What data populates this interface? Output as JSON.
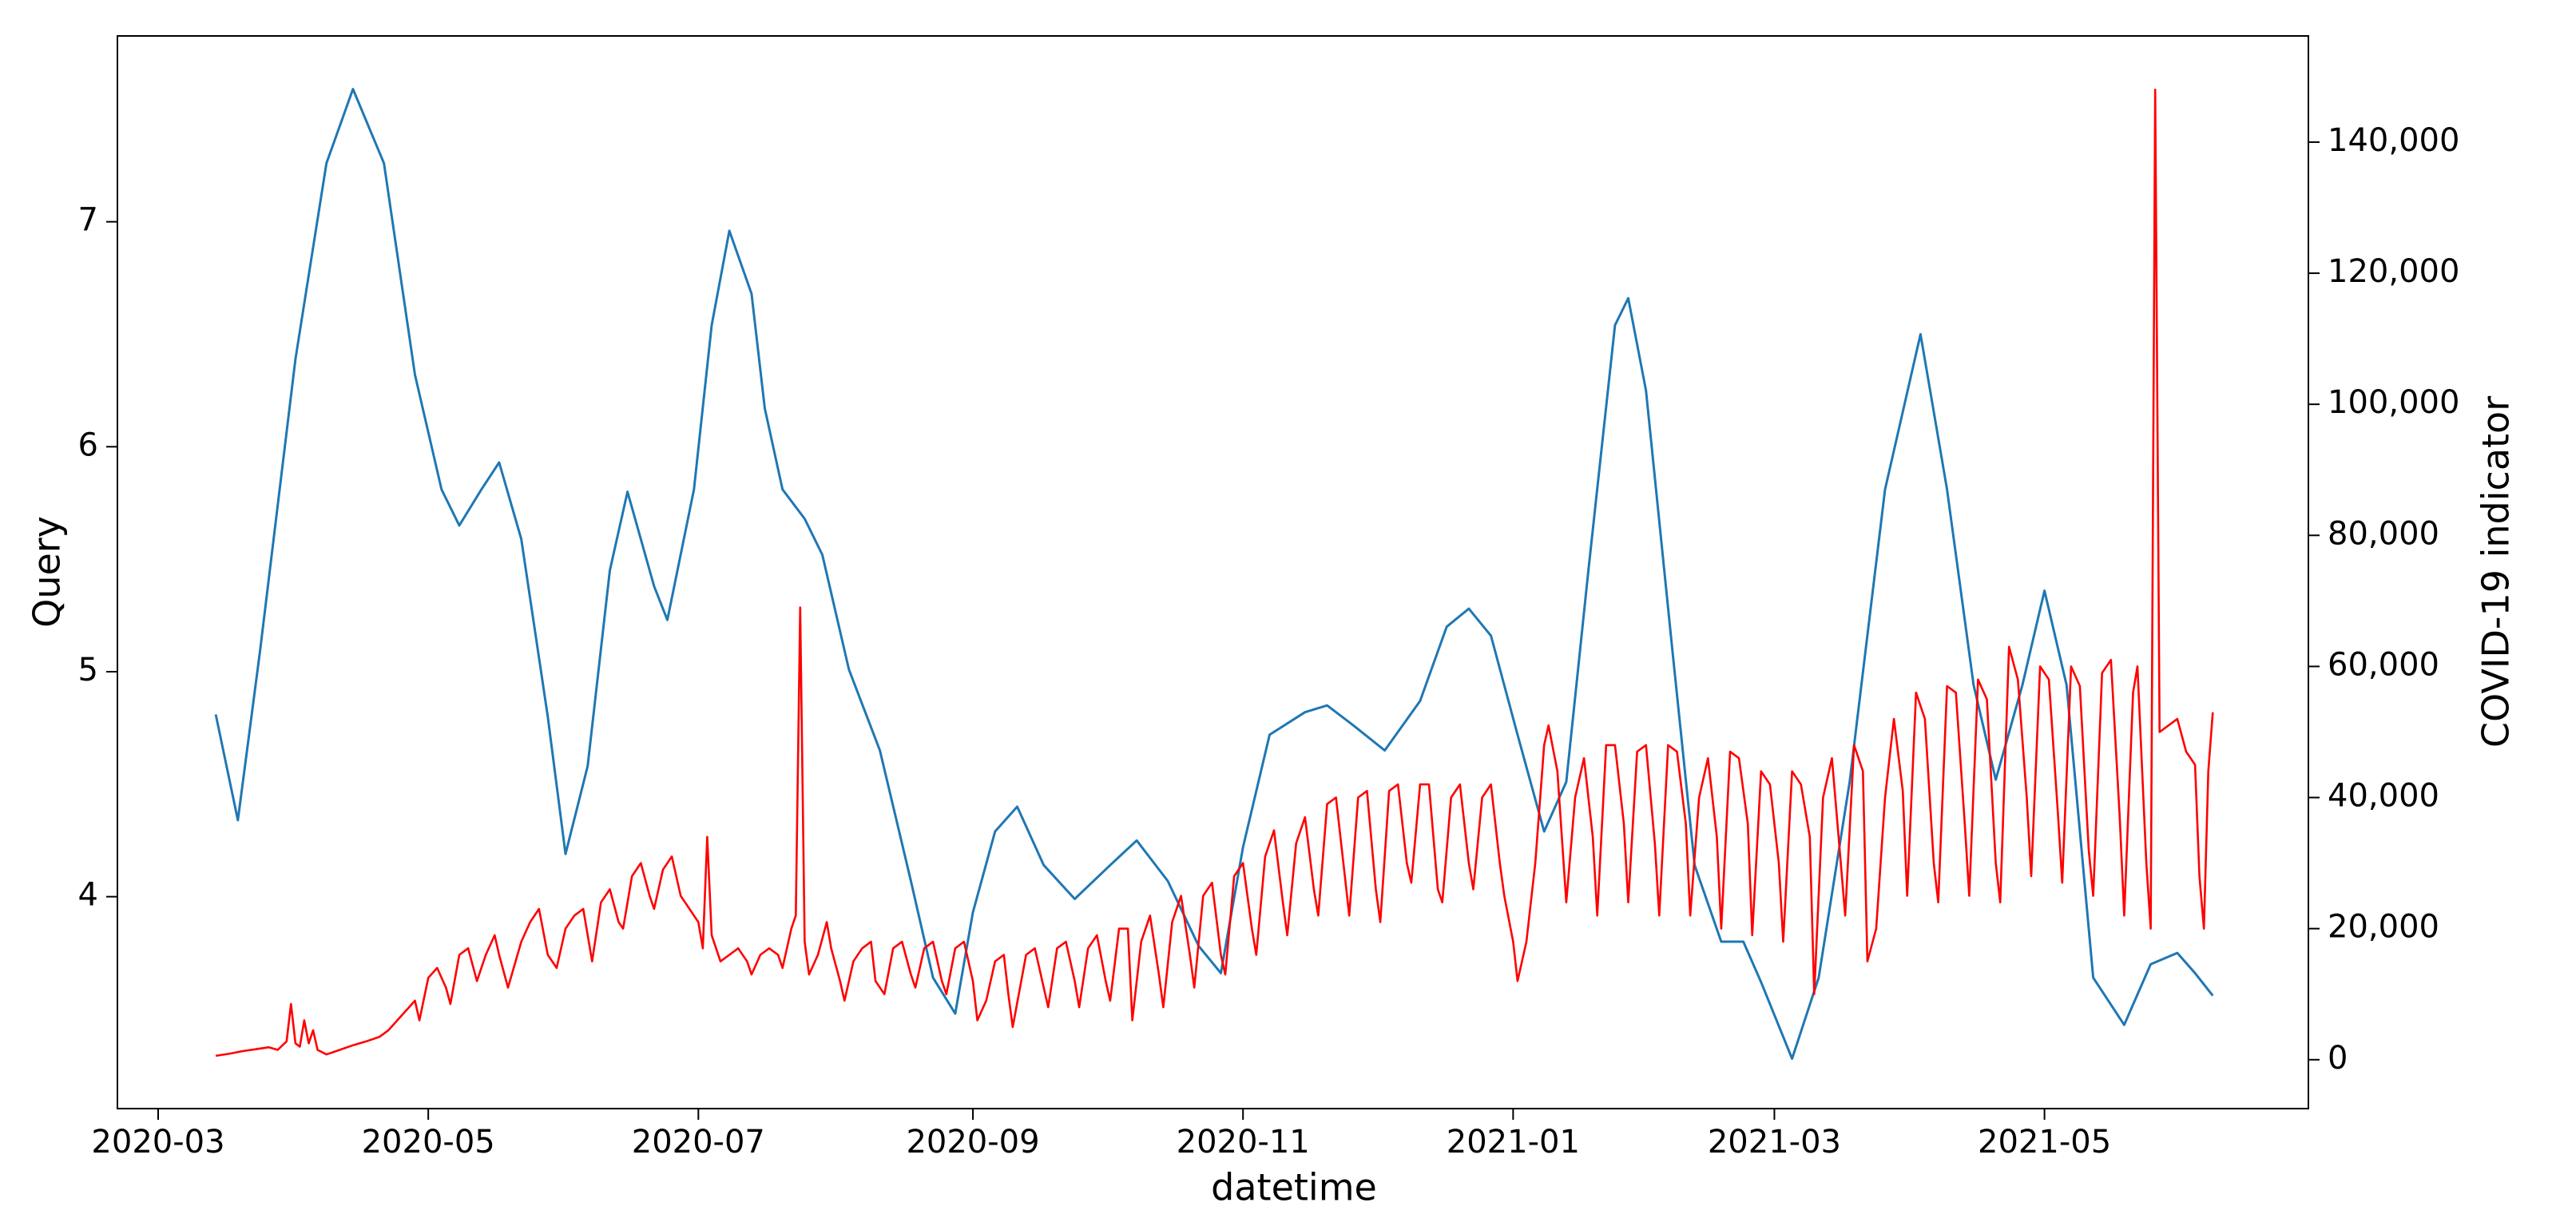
{
  "chart_data": {
    "type": "line",
    "x_label": "datetime",
    "y_label": "Query",
    "y2_label": "COVID-19 indicator",
    "xlim": [
      -9.2,
      485.6
    ],
    "xticks": [
      {
        "value": 0,
        "label": "2020-03"
      },
      {
        "value": 61,
        "label": "2020-05"
      },
      {
        "value": 122,
        "label": "2020-07"
      },
      {
        "value": 184,
        "label": "2020-09"
      },
      {
        "value": 245,
        "label": "2020-11"
      },
      {
        "value": 306,
        "label": "2021-01"
      },
      {
        "value": 365,
        "label": "2021-03"
      },
      {
        "value": 426,
        "label": "2021-05"
      }
    ],
    "ylim": [
      3.058,
      7.826
    ],
    "yticks": [
      4,
      5,
      6,
      7
    ],
    "y2lim": [
      -7460,
      156200
    ],
    "y2ticks": [
      0,
      {
        "value": 20000,
        "label": "20,000"
      },
      {
        "value": 40000,
        "label": "40,000"
      },
      {
        "value": 60000,
        "label": "60,000"
      },
      {
        "value": 80000,
        "label": "80,000"
      },
      {
        "value": 100000,
        "label": "100,000"
      },
      {
        "value": 120000,
        "label": "120,000"
      },
      {
        "value": 140000,
        "label": "140,000"
      }
    ],
    "series": [
      {
        "color": "#1f77b4",
        "axis": "y",
        "x": [
          13,
          18,
          23,
          31,
          38,
          44,
          51,
          58,
          64,
          68,
          73,
          77,
          82,
          88,
          92,
          97,
          102,
          106,
          112,
          115,
          121,
          125,
          129,
          134,
          137,
          141,
          146,
          150,
          156,
          163,
          170,
          175,
          180,
          184,
          189,
          194,
          200,
          207,
          215,
          221,
          228,
          235,
          240,
          245,
          251,
          259,
          264,
          270,
          277,
          285,
          291,
          296,
          301,
          307,
          313,
          318,
          323,
          329,
          332,
          336,
          342,
          347,
          353,
          358,
          362,
          369,
          375,
          382,
          390,
          398,
          404,
          410,
          415,
          421,
          426,
          431,
          437,
          444,
          450,
          456,
          460,
          464
        ],
        "values": [
          4.81,
          4.34,
          5.09,
          6.39,
          7.26,
          7.59,
          7.26,
          6.32,
          5.81,
          5.65,
          5.81,
          5.93,
          5.59,
          4.8,
          4.19,
          4.58,
          5.45,
          5.8,
          5.38,
          5.23,
          5.81,
          6.54,
          6.96,
          6.68,
          6.17,
          5.81,
          5.68,
          5.52,
          5.01,
          4.65,
          4.07,
          3.64,
          3.48,
          3.93,
          4.29,
          4.4,
          4.14,
          3.99,
          4.14,
          4.25,
          4.07,
          3.78,
          3.66,
          4.22,
          4.72,
          4.82,
          4.85,
          4.76,
          4.65,
          4.87,
          5.2,
          5.28,
          5.16,
          4.72,
          4.29,
          4.51,
          5.45,
          6.54,
          6.66,
          6.25,
          5.09,
          4.14,
          3.8,
          3.8,
          3.62,
          3.28,
          3.64,
          4.51,
          5.81,
          6.5,
          5.81,
          4.94,
          4.52,
          4.94,
          5.36,
          4.94,
          3.64,
          3.43,
          3.7,
          3.75,
          3.66,
          3.56
        ]
      },
      {
        "color": "#ff0000",
        "axis": "y2",
        "x": [
          13,
          16,
          19,
          22,
          25,
          27,
          29,
          30,
          31,
          32,
          33,
          34,
          35,
          36,
          38,
          41,
          44,
          47,
          50,
          52,
          54,
          56,
          58,
          59,
          61,
          63,
          65,
          66,
          68,
          70,
          72,
          74,
          76,
          77,
          79,
          82,
          84,
          86,
          88,
          90,
          92,
          94,
          96,
          98,
          100,
          102,
          104,
          105,
          107,
          109,
          111,
          112,
          114,
          116,
          118,
          119,
          121,
          122,
          123,
          124,
          125,
          127,
          129,
          131,
          133,
          134,
          136,
          138,
          140,
          141,
          143,
          144,
          145,
          146,
          147,
          149,
          151,
          152,
          154,
          155,
          157,
          159,
          161,
          162,
          164,
          166,
          168,
          170,
          171,
          173,
          175,
          177,
          178,
          180,
          182,
          184,
          185,
          187,
          189,
          191,
          192,
          193,
          196,
          198,
          200,
          201,
          203,
          205,
          207,
          208,
          210,
          212,
          214,
          215,
          217,
          219,
          220,
          222,
          224,
          226,
          227,
          229,
          231,
          233,
          234,
          236,
          238,
          240,
          241,
          243,
          245,
          247,
          248,
          250,
          252,
          254,
          255,
          257,
          259,
          261,
          262,
          264,
          266,
          268,
          269,
          271,
          273,
          275,
          276,
          278,
          280,
          282,
          283,
          285,
          287,
          289,
          290,
          292,
          294,
          296,
          297,
          299,
          301,
          303,
          304,
          306,
          307,
          309,
          311,
          313,
          314,
          316,
          318,
          320,
          322,
          324,
          325,
          327,
          329,
          331,
          332,
          334,
          336,
          338,
          339,
          341,
          343,
          345,
          346,
          348,
          350,
          352,
          353,
          355,
          357,
          359,
          360,
          362,
          364,
          366,
          367,
          369,
          371,
          373,
          374,
          376,
          378,
          380,
          381,
          383,
          385,
          386,
          388,
          390,
          392,
          394,
          395,
          397,
          399,
          401,
          402,
          404,
          406,
          408,
          409,
          411,
          413,
          415,
          416,
          418,
          420,
          422,
          423,
          425,
          427,
          429,
          430,
          432,
          434,
          436,
          437,
          439,
          441,
          443,
          444,
          446,
          447,
          449,
          450,
          451,
          452,
          454,
          456,
          458,
          460,
          461,
          462,
          463,
          464
        ],
        "values": [
          600,
          900,
          1300,
          1600,
          1900,
          1500,
          2800,
          8500,
          2500,
          2000,
          6000,
          2500,
          4500,
          1500,
          800,
          1500,
          2200,
          2800,
          3500,
          4500,
          6000,
          7500,
          9000,
          6000,
          12500,
          14000,
          11000,
          8500,
          16000,
          17000,
          12000,
          16000,
          19000,
          16000,
          11000,
          18000,
          21000,
          23000,
          16000,
          14000,
          20000,
          22000,
          23000,
          15000,
          24000,
          26000,
          21000,
          20000,
          28000,
          30000,
          25000,
          23000,
          29000,
          31000,
          25000,
          24000,
          22000,
          21000,
          17000,
          34000,
          19000,
          15000,
          16000,
          17000,
          15000,
          13000,
          16000,
          17000,
          16000,
          14000,
          20000,
          22000,
          69000,
          18000,
          13000,
          16000,
          21000,
          17000,
          12000,
          9000,
          15000,
          17000,
          18000,
          12000,
          10000,
          17000,
          18000,
          13000,
          11000,
          17000,
          18000,
          12000,
          10000,
          17000,
          18000,
          12000,
          6000,
          9000,
          15000,
          16000,
          10000,
          5000,
          16000,
          17000,
          11000,
          8000,
          17000,
          18000,
          12000,
          8000,
          17000,
          19000,
          12000,
          9000,
          20000,
          20000,
          6000,
          18000,
          22000,
          13000,
          8000,
          21000,
          25000,
          16000,
          11000,
          25000,
          27000,
          16000,
          13000,
          28000,
          30000,
          20000,
          16000,
          31000,
          35000,
          24000,
          19000,
          33000,
          37000,
          26000,
          22000,
          39000,
          40000,
          28000,
          22000,
          40000,
          41000,
          26000,
          21000,
          41000,
          42000,
          30000,
          27000,
          42000,
          42000,
          26000,
          24000,
          40000,
          42000,
          30000,
          26000,
          40000,
          42000,
          30000,
          25000,
          18000,
          12000,
          18000,
          30000,
          48000,
          51000,
          44000,
          24000,
          40000,
          46000,
          34000,
          22000,
          48000,
          48000,
          36000,
          24000,
          47000,
          48000,
          33000,
          22000,
          48000,
          47000,
          36000,
          22000,
          40000,
          46000,
          34000,
          20000,
          47000,
          46000,
          36000,
          19000,
          44000,
          42000,
          30000,
          18000,
          44000,
          42000,
          34000,
          10000,
          40000,
          46000,
          30000,
          22000,
          48000,
          44000,
          15000,
          20000,
          40000,
          52000,
          41000,
          25000,
          56000,
          52000,
          30000,
          24000,
          57000,
          56000,
          36000,
          25000,
          58000,
          55000,
          30000,
          24000,
          63000,
          58000,
          40000,
          28000,
          60000,
          58000,
          38000,
          27000,
          60000,
          57000,
          32000,
          25000,
          59000,
          61000,
          37000,
          22000,
          56000,
          60000,
          30000,
          20000,
          148000,
          50000,
          51000,
          52000,
          47000,
          45000,
          28000,
          20000,
          44000,
          53000
        ]
      }
    ]
  }
}
